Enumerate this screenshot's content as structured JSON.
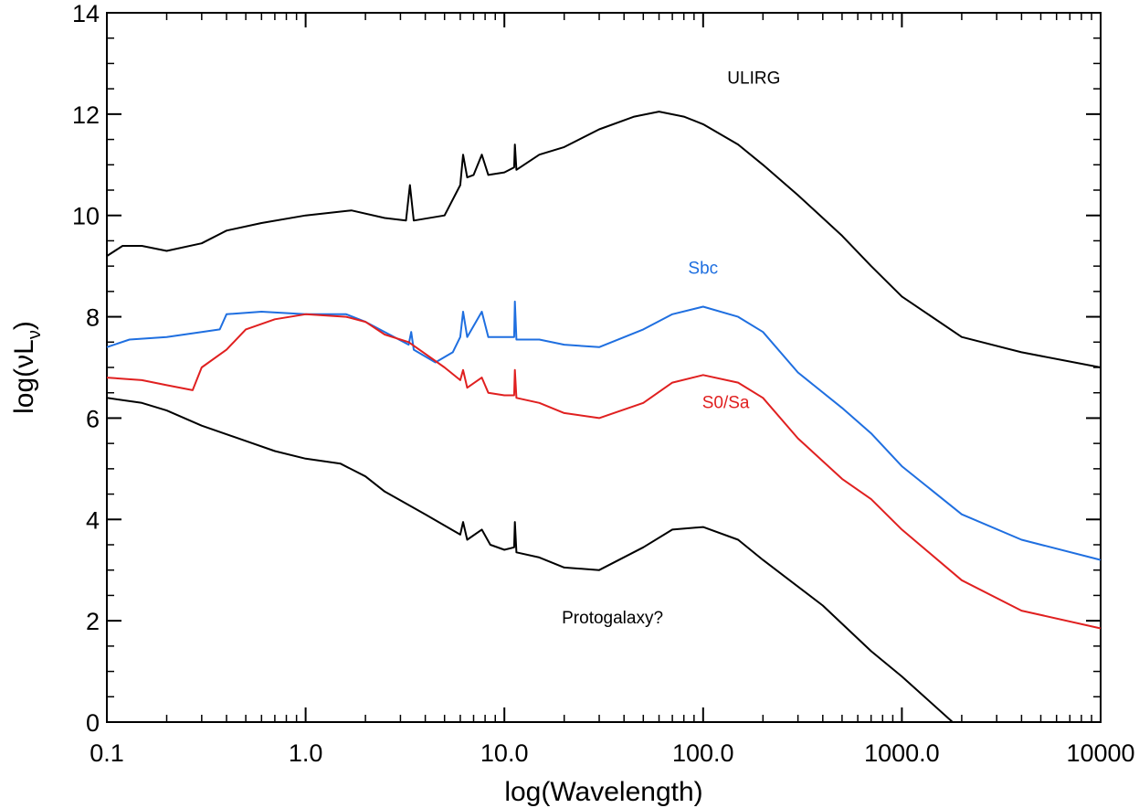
{
  "chart_data": {
    "type": "line",
    "xscale": "log",
    "xlim": [
      0.1,
      10000
    ],
    "ylim": [
      0,
      14
    ],
    "xlabel": "log(Wavelength)",
    "ylabel": "log(νL",
    "ylabel_sub": "ν",
    "ylabel_close": ")",
    "x_ticks": [
      {
        "value": 0.1,
        "label": "0.1"
      },
      {
        "value": 1,
        "label": "1.0"
      },
      {
        "value": 10,
        "label": "10.0"
      },
      {
        "value": 100,
        "label": "100.0"
      },
      {
        "value": 1000,
        "label": "1000.0"
      },
      {
        "value": 10000,
        "label": "10000"
      }
    ],
    "y_ticks": [
      {
        "value": 0,
        "label": "0"
      },
      {
        "value": 2,
        "label": "2"
      },
      {
        "value": 4,
        "label": "4"
      },
      {
        "value": 6,
        "label": "6"
      },
      {
        "value": 8,
        "label": "8"
      },
      {
        "value": 10,
        "label": "10"
      },
      {
        "value": 12,
        "label": "12"
      },
      {
        "value": 14,
        "label": "14"
      }
    ],
    "grid": false,
    "series": [
      {
        "name": "ULIRG",
        "color": "#000000",
        "label_at": [
          180,
          12.6
        ],
        "points": [
          [
            0.1,
            9.2
          ],
          [
            0.12,
            9.4
          ],
          [
            0.15,
            9.4
          ],
          [
            0.2,
            9.3
          ],
          [
            0.3,
            9.45
          ],
          [
            0.4,
            9.7
          ],
          [
            0.6,
            9.85
          ],
          [
            1.0,
            10.0
          ],
          [
            1.7,
            10.1
          ],
          [
            2.5,
            9.95
          ],
          [
            3.2,
            9.9
          ],
          [
            3.35,
            10.6
          ],
          [
            3.5,
            9.9
          ],
          [
            5.0,
            10.0
          ],
          [
            6.0,
            10.6
          ],
          [
            6.2,
            11.2
          ],
          [
            6.5,
            10.75
          ],
          [
            7.0,
            10.8
          ],
          [
            7.7,
            11.2
          ],
          [
            8.3,
            10.8
          ],
          [
            10,
            10.85
          ],
          [
            11.2,
            10.95
          ],
          [
            11.3,
            11.4
          ],
          [
            11.5,
            10.9
          ],
          [
            15,
            11.2
          ],
          [
            20,
            11.35
          ],
          [
            30,
            11.7
          ],
          [
            45,
            11.95
          ],
          [
            60,
            12.05
          ],
          [
            80,
            11.95
          ],
          [
            100,
            11.8
          ],
          [
            150,
            11.4
          ],
          [
            200,
            11.0
          ],
          [
            300,
            10.4
          ],
          [
            500,
            9.6
          ],
          [
            700,
            9.0
          ],
          [
            1000,
            8.4
          ],
          [
            2000,
            7.6
          ],
          [
            4000,
            7.3
          ],
          [
            10000,
            7.0
          ]
        ]
      },
      {
        "name": "Sbc",
        "color": "#1f6fe0",
        "label_at": [
          100,
          8.85
        ],
        "points": [
          [
            0.1,
            7.4
          ],
          [
            0.13,
            7.55
          ],
          [
            0.2,
            7.6
          ],
          [
            0.3,
            7.7
          ],
          [
            0.37,
            7.75
          ],
          [
            0.4,
            8.05
          ],
          [
            0.6,
            8.1
          ],
          [
            1.0,
            8.05
          ],
          [
            1.6,
            8.05
          ],
          [
            2.0,
            7.9
          ],
          [
            2.5,
            7.7
          ],
          [
            3.3,
            7.45
          ],
          [
            3.4,
            7.7
          ],
          [
            3.5,
            7.35
          ],
          [
            4.5,
            7.1
          ],
          [
            5.5,
            7.3
          ],
          [
            6.0,
            7.6
          ],
          [
            6.2,
            8.1
          ],
          [
            6.5,
            7.6
          ],
          [
            7.7,
            8.1
          ],
          [
            8.3,
            7.6
          ],
          [
            10,
            7.6
          ],
          [
            11.2,
            7.6
          ],
          [
            11.3,
            8.3
          ],
          [
            11.5,
            7.55
          ],
          [
            15,
            7.55
          ],
          [
            20,
            7.45
          ],
          [
            30,
            7.4
          ],
          [
            50,
            7.75
          ],
          [
            70,
            8.05
          ],
          [
            100,
            8.2
          ],
          [
            150,
            8.0
          ],
          [
            200,
            7.7
          ],
          [
            300,
            6.9
          ],
          [
            500,
            6.2
          ],
          [
            700,
            5.7
          ],
          [
            1000,
            5.05
          ],
          [
            2000,
            4.1
          ],
          [
            4000,
            3.6
          ],
          [
            10000,
            3.2
          ]
        ]
      },
      {
        "name": "S0/Sa",
        "color": "#e02020",
        "label_at": [
          130,
          6.2
        ],
        "points": [
          [
            0.1,
            6.8
          ],
          [
            0.15,
            6.75
          ],
          [
            0.2,
            6.65
          ],
          [
            0.27,
            6.55
          ],
          [
            0.3,
            7.0
          ],
          [
            0.4,
            7.35
          ],
          [
            0.5,
            7.75
          ],
          [
            0.7,
            7.95
          ],
          [
            1.0,
            8.05
          ],
          [
            1.6,
            8.0
          ],
          [
            2.0,
            7.9
          ],
          [
            2.5,
            7.65
          ],
          [
            3.3,
            7.5
          ],
          [
            5.0,
            7.0
          ],
          [
            6.0,
            6.75
          ],
          [
            6.2,
            6.95
          ],
          [
            6.5,
            6.6
          ],
          [
            7.7,
            6.8
          ],
          [
            8.3,
            6.5
          ],
          [
            10,
            6.45
          ],
          [
            11.2,
            6.45
          ],
          [
            11.3,
            6.95
          ],
          [
            11.5,
            6.4
          ],
          [
            15,
            6.3
          ],
          [
            20,
            6.1
          ],
          [
            30,
            6.0
          ],
          [
            50,
            6.3
          ],
          [
            70,
            6.7
          ],
          [
            100,
            6.85
          ],
          [
            150,
            6.7
          ],
          [
            200,
            6.4
          ],
          [
            300,
            5.6
          ],
          [
            500,
            4.8
          ],
          [
            700,
            4.4
          ],
          [
            1000,
            3.8
          ],
          [
            2000,
            2.8
          ],
          [
            4000,
            2.2
          ],
          [
            10000,
            1.85
          ]
        ]
      },
      {
        "name": "Protogalaxy?",
        "color": "#000000",
        "label_at": [
          35,
          1.95
        ],
        "points": [
          [
            0.1,
            6.4
          ],
          [
            0.15,
            6.3
          ],
          [
            0.2,
            6.15
          ],
          [
            0.3,
            5.85
          ],
          [
            0.5,
            5.55
          ],
          [
            0.7,
            5.35
          ],
          [
            1.0,
            5.2
          ],
          [
            1.5,
            5.1
          ],
          [
            2.0,
            4.85
          ],
          [
            2.5,
            4.55
          ],
          [
            4.0,
            4.1
          ],
          [
            6.0,
            3.7
          ],
          [
            6.2,
            3.95
          ],
          [
            6.5,
            3.6
          ],
          [
            7.7,
            3.8
          ],
          [
            8.5,
            3.5
          ],
          [
            10,
            3.4
          ],
          [
            11.2,
            3.45
          ],
          [
            11.3,
            3.95
          ],
          [
            11.5,
            3.35
          ],
          [
            15,
            3.25
          ],
          [
            20,
            3.05
          ],
          [
            30,
            3.0
          ],
          [
            50,
            3.45
          ],
          [
            70,
            3.8
          ],
          [
            100,
            3.85
          ],
          [
            150,
            3.6
          ],
          [
            200,
            3.2
          ],
          [
            400,
            2.3
          ],
          [
            700,
            1.4
          ],
          [
            1000,
            0.9
          ],
          [
            1800,
            0.0
          ]
        ]
      }
    ]
  }
}
